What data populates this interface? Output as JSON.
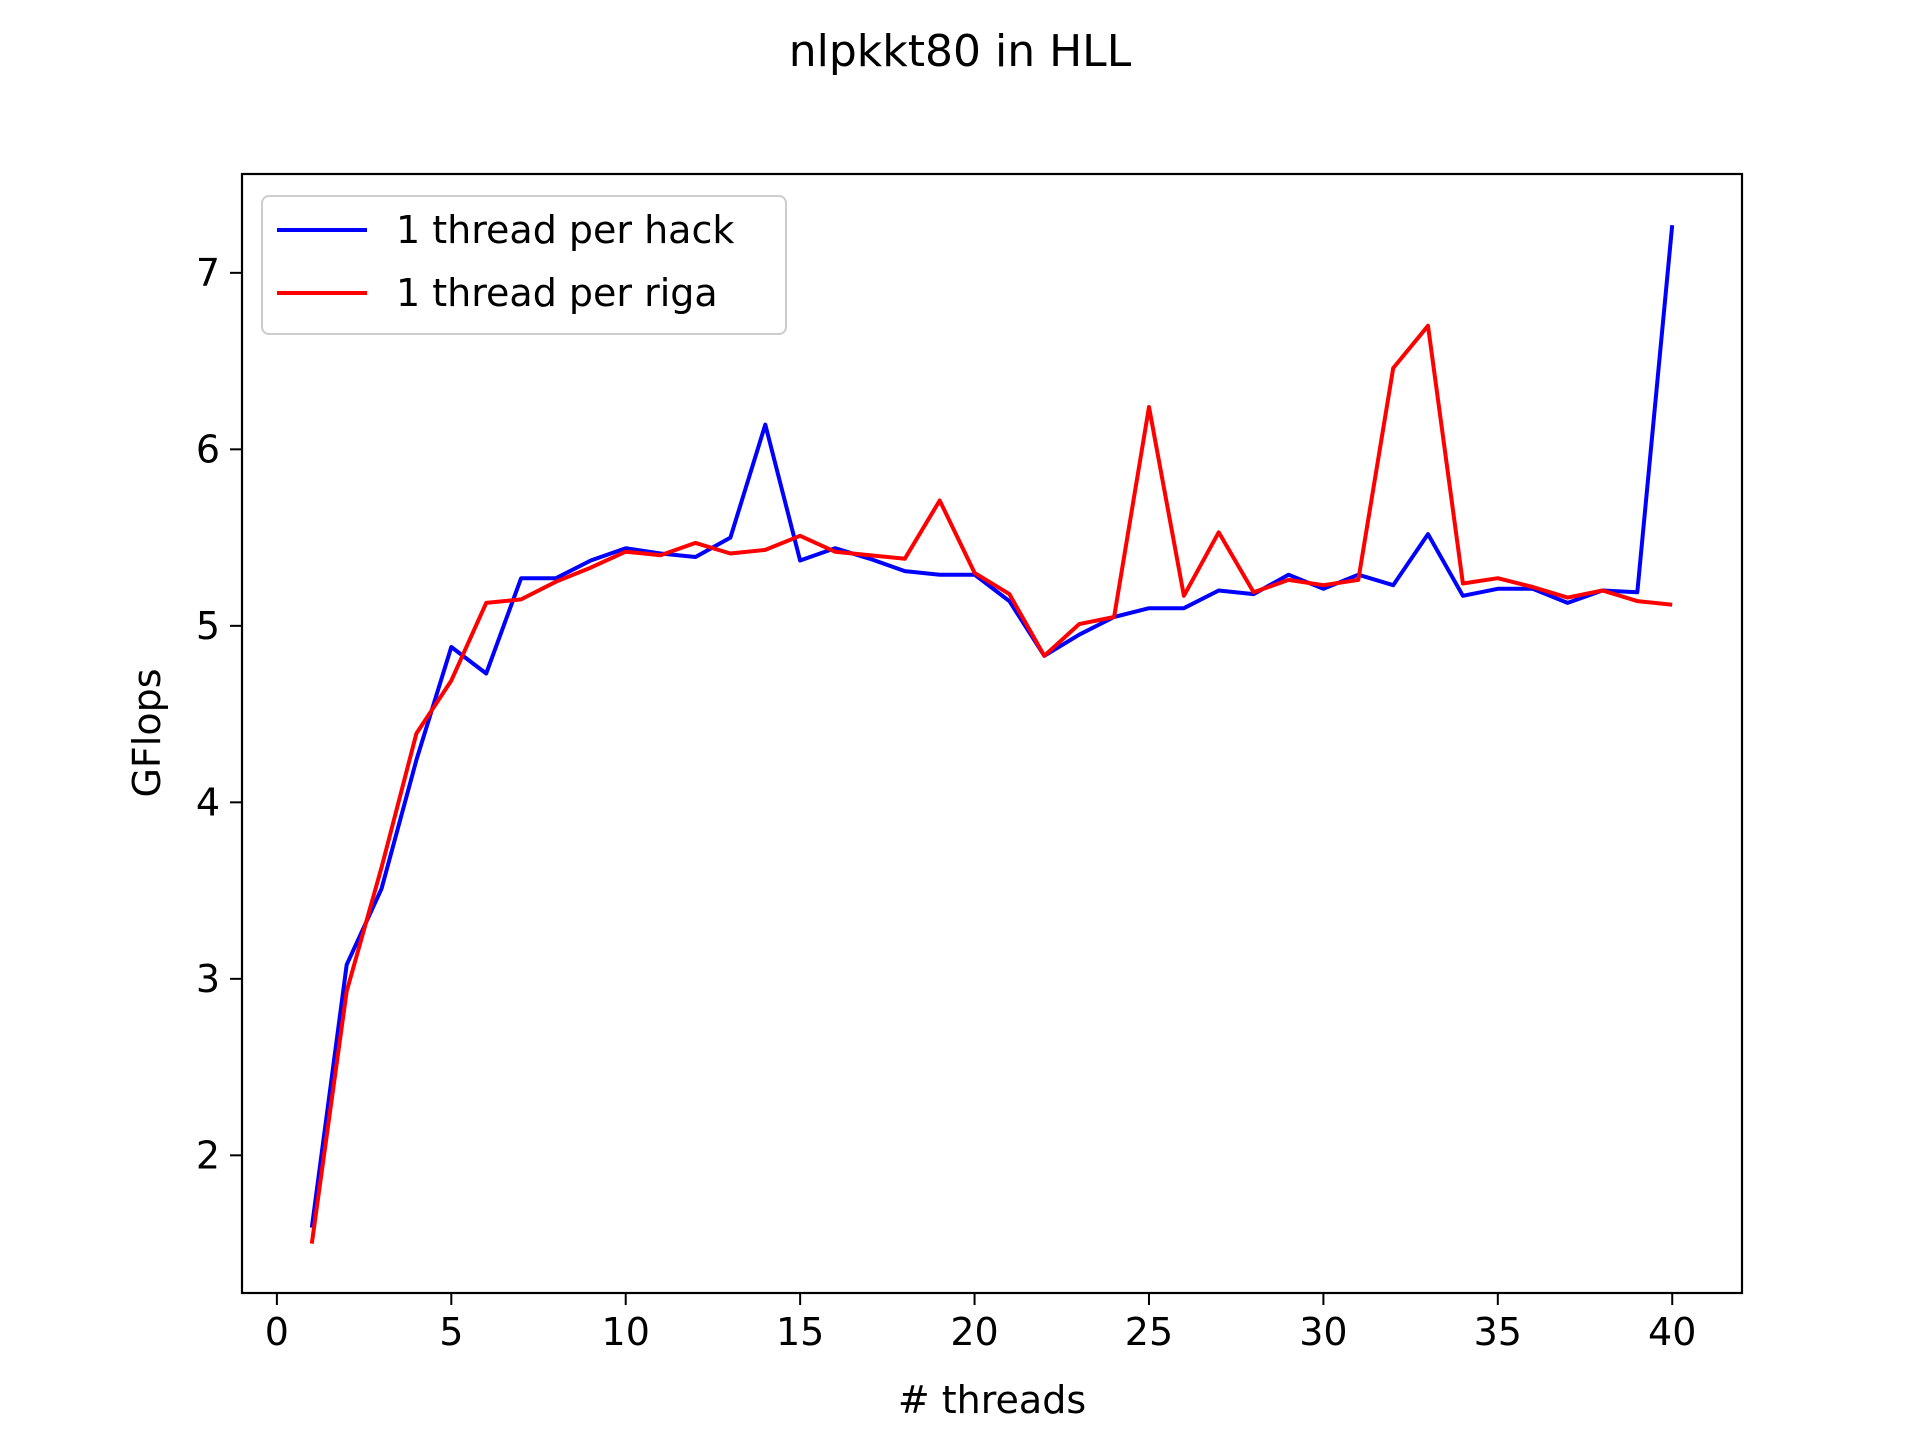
{
  "chart_data": {
    "type": "line",
    "title": "nlpkkt80 in HLL",
    "xlabel": "# threads",
    "ylabel": "GFlops",
    "xlim": [
      -1,
      42
    ],
    "ylim": [
      1.22,
      7.56
    ],
    "xticks": [
      0,
      5,
      10,
      15,
      20,
      25,
      30,
      35,
      40
    ],
    "yticks": [
      2,
      3,
      4,
      5,
      6,
      7
    ],
    "grid": false,
    "legend_position": "upper-left",
    "x": [
      1,
      2,
      3,
      4,
      5,
      6,
      7,
      8,
      9,
      10,
      11,
      12,
      13,
      14,
      15,
      16,
      17,
      18,
      19,
      20,
      21,
      22,
      23,
      24,
      25,
      26,
      27,
      28,
      29,
      30,
      31,
      32,
      33,
      34,
      35,
      36,
      37,
      38,
      39,
      40
    ],
    "series": [
      {
        "name": "1 thread per hack",
        "color": "#0000ff",
        "values": [
          1.59,
          3.08,
          3.51,
          4.24,
          4.88,
          4.73,
          5.27,
          5.27,
          5.37,
          5.44,
          5.41,
          5.39,
          5.5,
          6.14,
          5.37,
          5.44,
          5.38,
          5.31,
          5.29,
          5.29,
          5.14,
          4.83,
          4.95,
          5.05,
          5.1,
          5.1,
          5.2,
          5.18,
          5.29,
          5.21,
          5.29,
          5.23,
          5.52,
          5.17,
          5.21,
          5.21,
          5.13,
          5.2,
          5.19,
          7.27
        ]
      },
      {
        "name": "1 thread per riga",
        "color": "#ff0000",
        "values": [
          1.5,
          2.93,
          3.63,
          4.39,
          4.69,
          5.13,
          5.15,
          5.25,
          5.33,
          5.42,
          5.4,
          5.47,
          5.41,
          5.43,
          5.51,
          5.42,
          5.4,
          5.38,
          5.71,
          5.3,
          5.18,
          4.83,
          5.01,
          5.05,
          6.24,
          5.17,
          5.53,
          5.19,
          5.26,
          5.23,
          5.26,
          6.46,
          6.7,
          5.24,
          5.27,
          5.22,
          5.16,
          5.2,
          5.14,
          5.12
        ]
      }
    ]
  }
}
